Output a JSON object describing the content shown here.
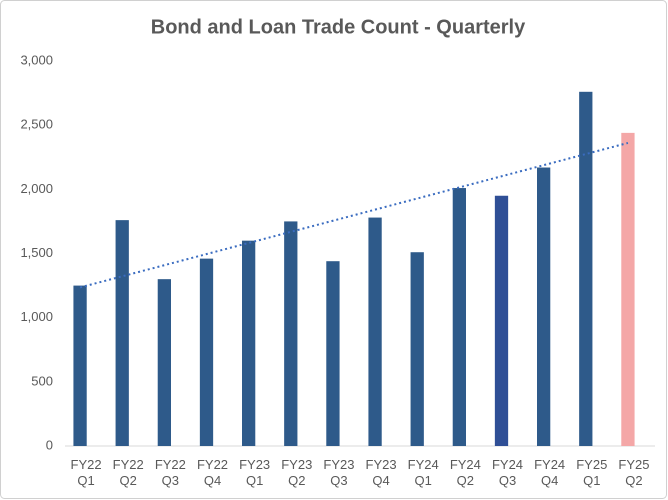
{
  "chart_data": {
    "type": "bar",
    "title": "Bond and Loan Trade Count - Quarterly",
    "categories": [
      [
        "FY22",
        "Q1"
      ],
      [
        "FY22",
        "Q2"
      ],
      [
        "FY22",
        "Q3"
      ],
      [
        "FY22",
        "Q4"
      ],
      [
        "FY23",
        "Q1"
      ],
      [
        "FY23",
        "Q2"
      ],
      [
        "FY23",
        "Q3"
      ],
      [
        "FY23",
        "Q4"
      ],
      [
        "FY24",
        "Q1"
      ],
      [
        "FY24",
        "Q2"
      ],
      [
        "FY24",
        "Q3"
      ],
      [
        "FY24",
        "Q4"
      ],
      [
        "FY25",
        "Q1"
      ],
      [
        "FY25",
        "Q2"
      ]
    ],
    "values": [
      1250,
      1760,
      1300,
      1460,
      1600,
      1750,
      1440,
      1780,
      1510,
      2010,
      1950,
      2170,
      2760,
      2440
    ],
    "colors": [
      "#2e5a8a",
      "#2e5a8a",
      "#2e5a8a",
      "#2e5a8a",
      "#2e5a8a",
      "#2e5a8a",
      "#2e5a8a",
      "#2e5a8a",
      "#2e5a8a",
      "#2e5a8a",
      "#2f4f96",
      "#2e5a8a",
      "#2e5a8a",
      "#f4a7a7"
    ],
    "ylim": [
      0,
      3000
    ],
    "yticks": [
      0,
      500,
      {
        "value": 1000,
        "label": "1,000"
      },
      {
        "value": 1500,
        "label": "1,500"
      },
      {
        "value": 2000,
        "label": "2,000"
      },
      {
        "value": 2500,
        "label": "2,500"
      },
      {
        "value": 3000,
        "label": "3,000"
      }
    ],
    "grid": false,
    "trendline": true,
    "trendline_color": "#3a6cc0"
  }
}
